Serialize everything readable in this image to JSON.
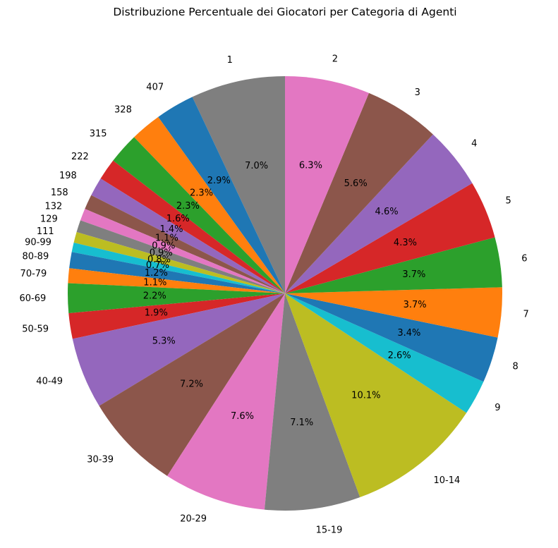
{
  "chart_data": {
    "type": "pie",
    "title": "Distribuzione Percentuale dei Giocatori per Categoria di Agenti",
    "start_angle_deg": 90,
    "direction": "counterclockwise",
    "categories": [
      "1",
      "407",
      "328",
      "315",
      "222",
      "198",
      "158",
      "132",
      "129",
      "111",
      "90-99",
      "80-89",
      "70-79",
      "60-69",
      "50-59",
      "40-49",
      "30-39",
      "20-29",
      "15-19",
      "10-14",
      "9",
      "8",
      "7",
      "6",
      "5",
      "4",
      "3",
      "2"
    ],
    "values": [
      7.0,
      2.9,
      2.3,
      2.3,
      1.6,
      1.4,
      1.1,
      0.9,
      0.9,
      0.8,
      0.7,
      1.2,
      1.1,
      2.2,
      1.9,
      5.3,
      7.2,
      7.6,
      7.1,
      10.1,
      2.6,
      3.4,
      3.7,
      3.7,
      4.3,
      4.6,
      5.6,
      6.3
    ],
    "labels": [
      "7.0%",
      "2.9%",
      "2.3%",
      "2.3%",
      "1.6%",
      "1.4%",
      "1.1%",
      "0.9%",
      "0.9%",
      "0.8%",
      "0.7%",
      "1.2%",
      "1.1%",
      "2.2%",
      "1.9%",
      "5.3%",
      "7.2%",
      "7.6%",
      "7.1%",
      "10.1%",
      "2.6%",
      "3.4%",
      "3.7%",
      "3.7%",
      "4.3%",
      "4.6%",
      "5.6%",
      "6.3%"
    ],
    "colors": [
      "#7f7f7f",
      "#1f77b4",
      "#ff7f0e",
      "#2ca02c",
      "#d62728",
      "#9467bd",
      "#8c564b",
      "#e377c2",
      "#7f7f7f",
      "#bcbd22",
      "#17becf",
      "#1f77b4",
      "#ff7f0e",
      "#2ca02c",
      "#d62728",
      "#9467bd",
      "#8c564b",
      "#e377c2",
      "#7f7f7f",
      "#bcbd22",
      "#17becf",
      "#1f77b4",
      "#ff7f0e",
      "#2ca02c",
      "#d62728",
      "#9467bd",
      "#8c564b",
      "#e377c2"
    ]
  }
}
